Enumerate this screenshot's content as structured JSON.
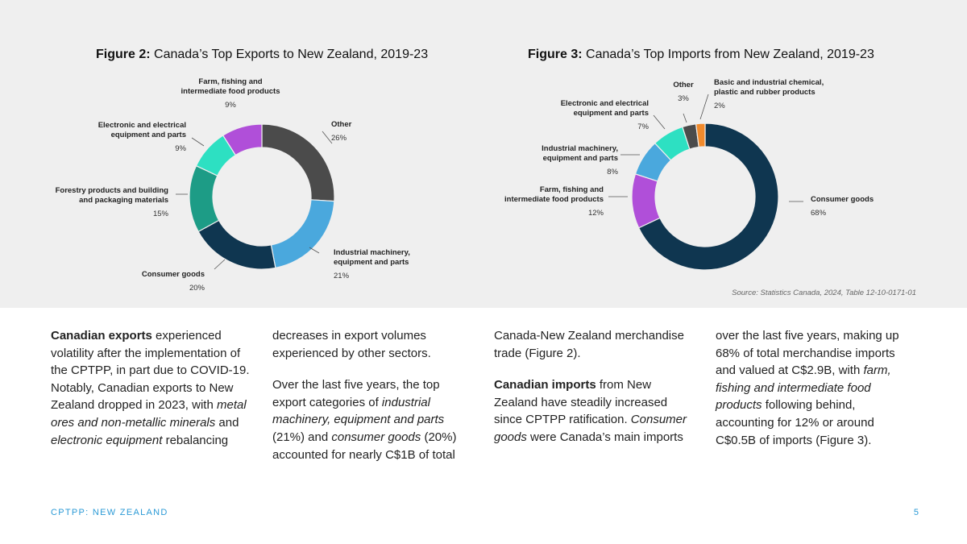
{
  "colors": {
    "other": "#4b4b4b",
    "industrial": "#4aa8dd",
    "consumer": "#0f3650",
    "forestry": "#1d9c86",
    "electronic": "#2de0c2",
    "farm": "#b04fd9",
    "chemical": "#f08a2c",
    "footer": "#2b9ad6"
  },
  "chart_data": [
    {
      "type": "pie",
      "title_bold": "Figure 2:",
      "title": "Canada’s Top Exports to New Zealand, 2019-23",
      "slices": [
        {
          "label": [
            "Other"
          ],
          "value": 26,
          "pct_label": "26%",
          "color_key": "other"
        },
        {
          "label": [
            "Industrial machinery,",
            "equipment and parts"
          ],
          "value": 21,
          "pct_label": "21%",
          "color_key": "industrial"
        },
        {
          "label": [
            "Consumer goods"
          ],
          "value": 20,
          "pct_label": "20%",
          "color_key": "consumer"
        },
        {
          "label": [
            "Forestry products and building",
            "and packaging materials"
          ],
          "value": 15,
          "pct_label": "15%",
          "color_key": "forestry"
        },
        {
          "label": [
            "Electronic and electrical",
            "equipment and parts"
          ],
          "value": 9,
          "pct_label": "9%",
          "color_key": "electronic"
        },
        {
          "label": [
            "Farm, fishing and",
            "intermediate food products"
          ],
          "value": 9,
          "pct_label": "9%",
          "color_key": "farm"
        }
      ]
    },
    {
      "type": "pie",
      "title_bold": "Figure 3:",
      "title": "Canada’s Top Imports from New Zealand, 2019-23",
      "slices": [
        {
          "label": [
            "Consumer goods"
          ],
          "value": 68,
          "pct_label": "68%",
          "color_key": "consumer"
        },
        {
          "label": [
            "Farm, fishing and",
            "intermediate food products"
          ],
          "value": 12,
          "pct_label": "12%",
          "color_key": "farm"
        },
        {
          "label": [
            "Industrial machinery,",
            "equipment and parts"
          ],
          "value": 8,
          "pct_label": "8%",
          "color_key": "industrial"
        },
        {
          "label": [
            "Electronic and electrical",
            "equipment and parts"
          ],
          "value": 7,
          "pct_label": "7%",
          "color_key": "electronic"
        },
        {
          "label": [
            "Other"
          ],
          "value": 3,
          "pct_label": "3%",
          "color_key": "other"
        },
        {
          "label": [
            "Basic and industrial chemical,",
            "plastic and rubber products"
          ],
          "value": 2,
          "pct_label": "2%",
          "color_key": "chemical"
        }
      ]
    }
  ],
  "source": "Source: Statistics Canada, 2024, Table 12-10-0171-01",
  "body": {
    "col1": {
      "p1_bold": "Canadian exports",
      "p1_a": " experienced volatility after the implementation of the CPTPP, in part due to COVID-19. Notably, Canadian exports to New Zealand dropped in 2023, with ",
      "p1_i1": "metal ores and non-metallic minerals",
      "p1_b": " and ",
      "p1_i2": "electronic equipment",
      "p1_c": " rebalancing"
    },
    "col2": {
      "p1": "decreases in export volumes experienced by other sectors.",
      "p2_a": "Over the last five years, the top export categories of ",
      "p2_i1": "industrial machinery, equipment and parts",
      "p2_b": " (21%) and ",
      "p2_i2": "consumer goods",
      "p2_c": " (20%) accounted for nearly C$1B of total"
    },
    "col3": {
      "p1": "Canada-New Zealand merchandise trade (Figure 2).",
      "p2_bold": "Canadian imports",
      "p2_a": " from New Zealand have steadily increased since CPTPP ratification. ",
      "p2_i1": "Consumer goods",
      "p2_b": " were Canada’s main imports"
    },
    "col4": {
      "p1_a": "over the last five years, making up 68% of total merchandise imports and valued at C$2.9B, with ",
      "p1_i1": "farm, fishing and intermediate food products",
      "p1_b": " following behind, accounting for 12% or around C$0.5B of imports (Figure 3)."
    }
  },
  "footer": {
    "left": "CPTPP: NEW ZEALAND",
    "page": "5"
  }
}
